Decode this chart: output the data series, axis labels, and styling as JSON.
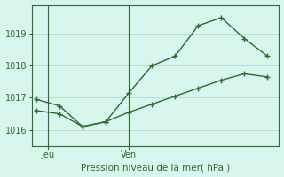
{
  "line1_x": [
    0,
    1,
    2,
    3,
    4,
    5,
    6,
    7,
    8,
    9,
    10
  ],
  "line1_y": [
    1016.95,
    1016.75,
    1016.1,
    1016.25,
    1017.15,
    1018.0,
    1018.3,
    1019.25,
    1019.5,
    1018.85,
    1018.3
  ],
  "line2_x": [
    0,
    1,
    2,
    3,
    4,
    5,
    6,
    7,
    8,
    9,
    10
  ],
  "line2_y": [
    1016.6,
    1016.5,
    1016.1,
    1016.25,
    1016.55,
    1016.8,
    1017.05,
    1017.3,
    1017.55,
    1017.75,
    1017.65
  ],
  "line_color": "#2d6a2d",
  "background_color": "#d8f5ee",
  "grid_color": "#b8ddd4",
  "xlabel": "Pression niveau de la mer( hPa )",
  "xlabel_color": "#2d6a2d",
  "ylim": [
    1015.5,
    1019.9
  ],
  "yticks": [
    1016,
    1017,
    1018,
    1019
  ],
  "xtick_positions": [
    0.5,
    4.0
  ],
  "xtick_labels": [
    "Jeu",
    "Ven"
  ],
  "vline_x": [
    0.5,
    4.0
  ],
  "axis_color": "#2d6a2d",
  "tick_color": "#2d6a2d",
  "xlim": [
    -0.2,
    10.5
  ]
}
